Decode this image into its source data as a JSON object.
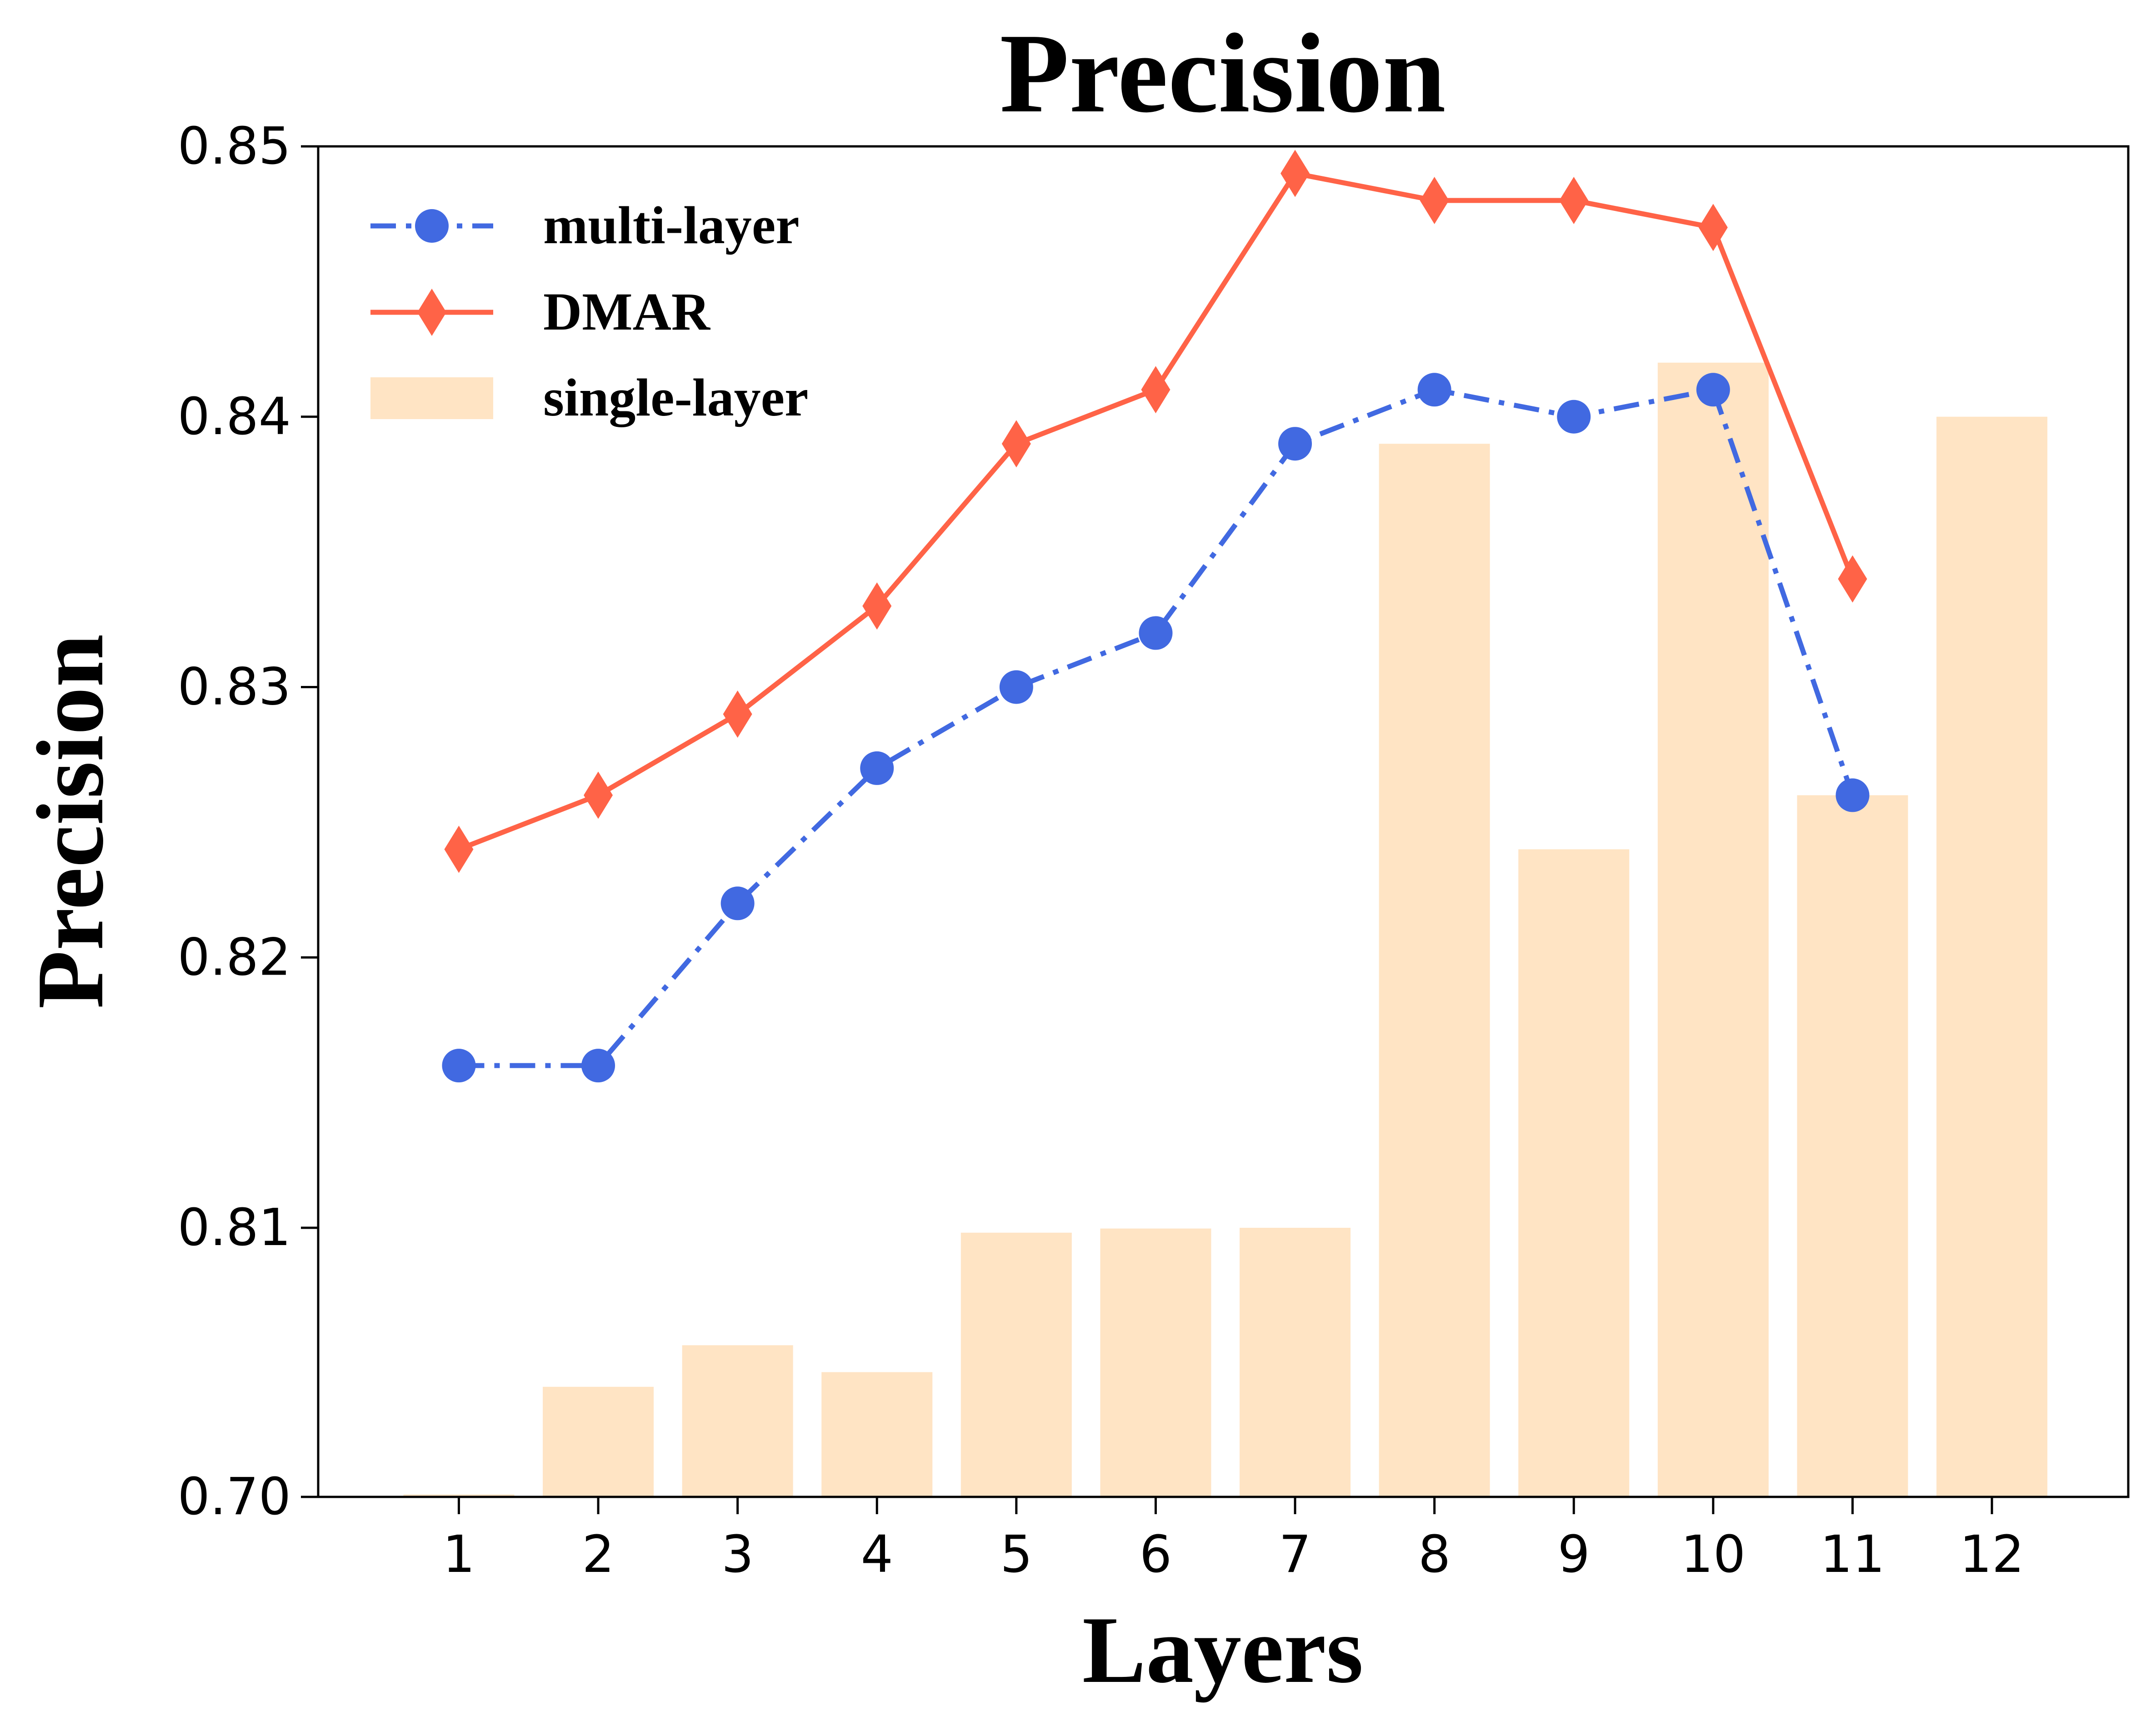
{
  "chart_data": {
    "type": "bar",
    "title": "Precision",
    "xlabel": "Layers",
    "ylabel": "Precision",
    "categories": [
      "1",
      "2",
      "3",
      "4",
      "5",
      "6",
      "7",
      "8",
      "9",
      "10",
      "11",
      "12"
    ],
    "y_ticks": [
      "0.70",
      "0.81",
      "0.82",
      "0.83",
      "0.84",
      "0.85"
    ],
    "y_axis_note": "broken scale: bottom tick 0.70, then 0.81 to 0.85 linear",
    "series": [
      {
        "name": "single-layer",
        "kind": "bar",
        "color": "#FFE4C4",
        "values": [
          0.701,
          0.745,
          0.762,
          0.751,
          0.808,
          0.8097,
          0.81,
          0.839,
          0.824,
          0.842,
          0.826,
          0.84
        ]
      },
      {
        "name": "multi-layer",
        "kind": "line",
        "style": "dash-dot",
        "marker": "circle",
        "color": "#4169E1",
        "values": [
          0.816,
          0.816,
          0.822,
          0.827,
          0.83,
          0.832,
          0.839,
          0.841,
          0.84,
          0.841,
          0.826,
          null
        ]
      },
      {
        "name": "DMAR",
        "kind": "line",
        "style": "solid",
        "marker": "diamond",
        "color": "#FF6347",
        "values": [
          0.824,
          0.826,
          0.829,
          0.833,
          0.839,
          0.841,
          0.849,
          0.848,
          0.848,
          0.847,
          0.834,
          null
        ]
      }
    ],
    "legend_position": "top-left"
  }
}
